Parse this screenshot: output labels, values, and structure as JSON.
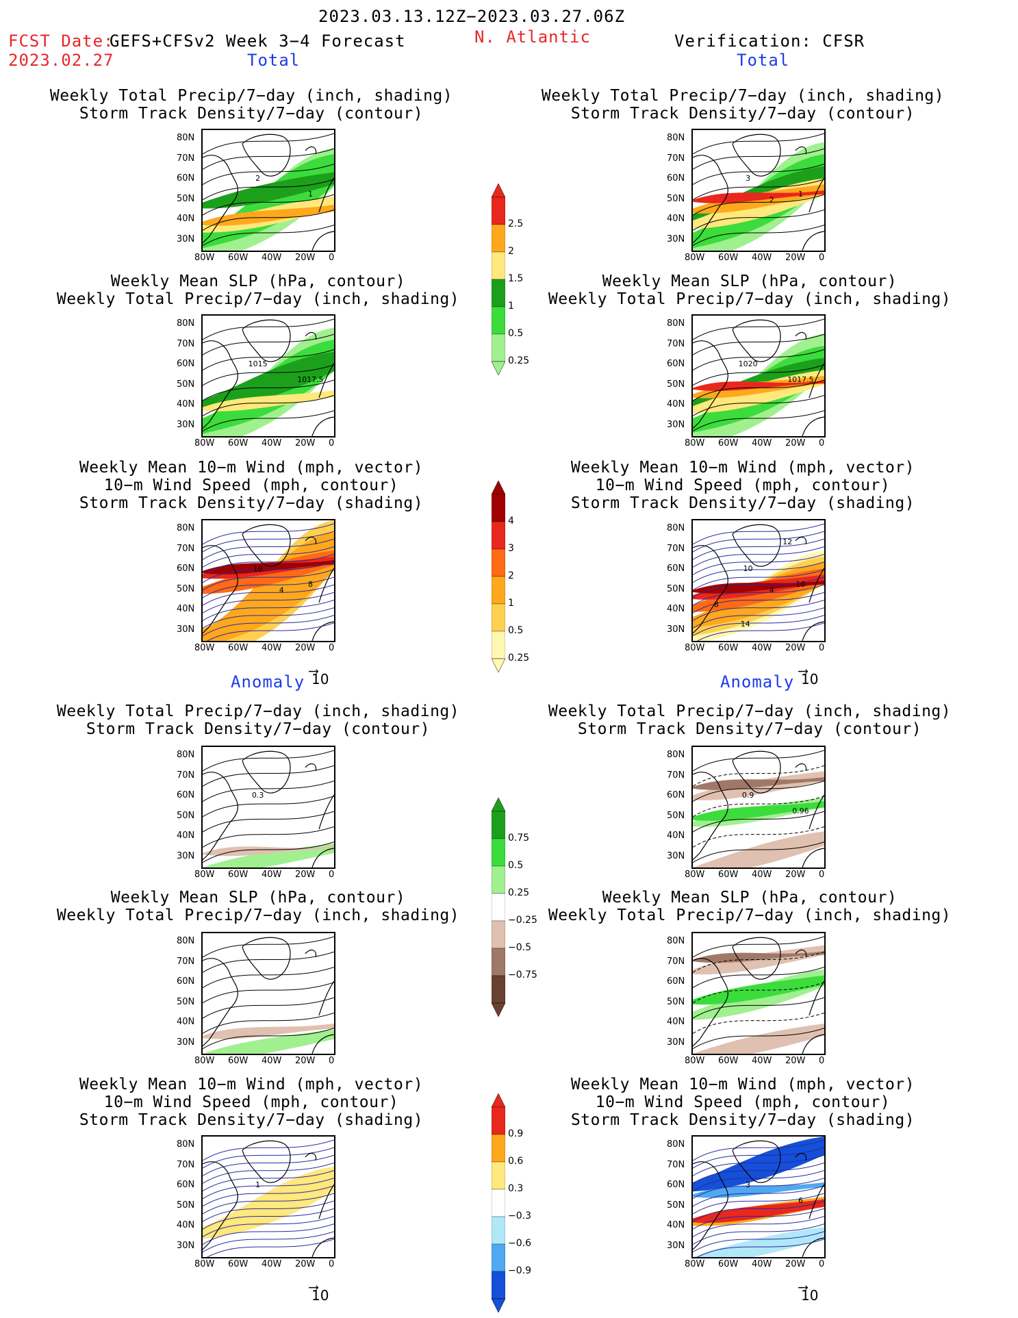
{
  "header": {
    "period": "2023.03.13.12Z−2023.03.27.06Z",
    "fcst_label": "FCST Date:",
    "fcst_model": "GEFS+CFSv2 Week 3−4 Forecast",
    "fcst_date": "2023.02.27",
    "region": "N. Atlantic",
    "verification": "Verification: CFSR",
    "total_left": "Total",
    "total_right": "Total",
    "anomaly_left": "Anomaly",
    "anomaly_right": "Anomaly"
  },
  "titles": {
    "precip_storm": [
      "Weekly Total Precip/7−day (inch, shading)",
      "Storm Track Density/7−day (contour)"
    ],
    "slp_precip": [
      "Weekly Mean SLP (hPa, contour)",
      "Weekly Total Precip/7−day (inch, shading)"
    ],
    "wind": [
      "Weekly Mean 10−m Wind (mph, vector)",
      "10−m Wind Speed (mph, contour)",
      "Storm Track Density/7−day (shading)"
    ]
  },
  "axes": {
    "lat": [
      "80N",
      "70N",
      "60N",
      "50N",
      "40N",
      "30N"
    ],
    "lon": [
      "80W",
      "60W",
      "40W",
      "20W",
      "0"
    ]
  },
  "vector_ref": "10",
  "panel_labels": {
    "fc_precip": [
      "2",
      "1"
    ],
    "ob_precip": [
      "3",
      "1",
      "2"
    ],
    "fc_slp": [
      "1015",
      "1017.5"
    ],
    "ob_slp": [
      "1020",
      "1017.5"
    ],
    "fc_wind": [
      "10",
      "8",
      "4"
    ],
    "ob_wind": [
      "10",
      "10",
      "4",
      "8",
      "12",
      "14"
    ],
    "fa_precip": [
      "0.3"
    ],
    "oa_precip": [
      "0.9",
      "0.96"
    ],
    "fa_wind": [
      "1"
    ],
    "oa_wind": [
      "3",
      "6"
    ]
  },
  "colorbars": {
    "precip": {
      "labels": [
        "2.5",
        "2",
        "1.5",
        "1",
        "0.5",
        "0.25"
      ],
      "colors": [
        "#e8281c",
        "#ffa81c",
        "#ffe87c",
        "#1ca01c",
        "#3cdc3c",
        "#a0f090"
      ]
    },
    "storm": {
      "labels": [
        "4",
        "3",
        "2",
        "1",
        "0.5",
        "0.25"
      ],
      "colors": [
        "#a00000",
        "#e8281c",
        "#ff6a14",
        "#ffa81c",
        "#ffd050",
        "#fff8b0"
      ]
    },
    "anom_precip": {
      "labels": [
        "0.75",
        "0.5",
        "0.25",
        "−0.25",
        "−0.5",
        "−0.75"
      ],
      "colors": [
        "#1ca01c",
        "#3cdc3c",
        "#a0f090",
        "#ffffff",
        "#e0c0b0",
        "#a07868",
        "#6a4030"
      ]
    },
    "anom_storm": {
      "labels": [
        "0.9",
        "0.6",
        "0.3",
        "−0.3",
        "−0.6",
        "−0.9"
      ],
      "colors": [
        "#e8281c",
        "#ffa81c",
        "#ffe87c",
        "#ffffff",
        "#b0e8f8",
        "#50a8f0",
        "#1450d8"
      ]
    }
  },
  "colors": {
    "red": "#e8262a",
    "blue": "#1c3ce8"
  }
}
